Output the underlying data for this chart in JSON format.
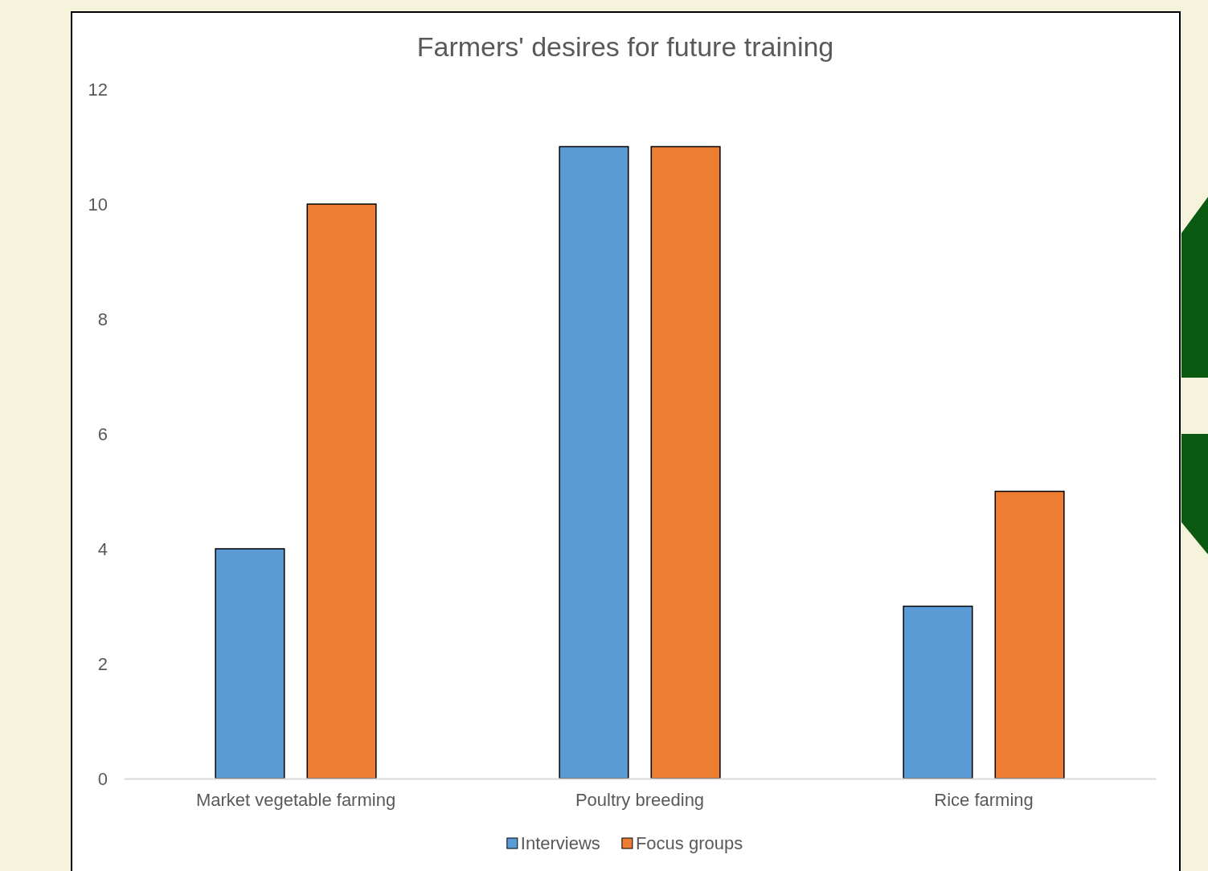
{
  "chart_data": {
    "type": "bar",
    "title": "Farmers' desires for future training",
    "categories": [
      "Market vegetable farming",
      "Poultry breeding",
      "Rice farming"
    ],
    "series": [
      {
        "name": "Interviews",
        "color": "#5b9bd5",
        "values": [
          4,
          11,
          3
        ]
      },
      {
        "name": "Focus groups",
        "color": "#ed7d31",
        "values": [
          10,
          11,
          5
        ]
      }
    ],
    "ylim": [
      0,
      12
    ],
    "yticks": [
      0,
      2,
      4,
      6,
      8,
      10,
      12
    ],
    "grid": false,
    "legend": "bottom"
  }
}
